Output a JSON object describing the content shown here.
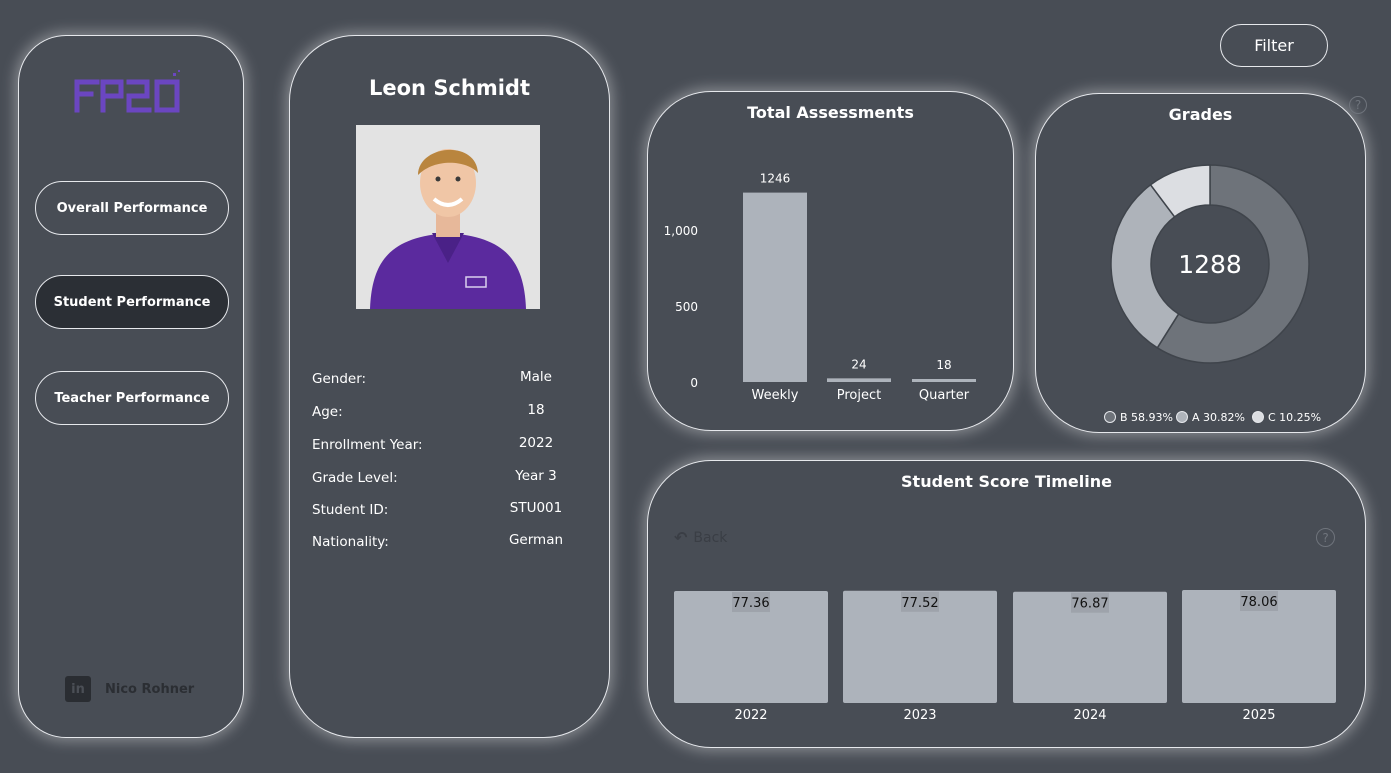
{
  "filter_label": "Filter",
  "sidebar": {
    "nav": [
      {
        "label": "Overall Performance"
      },
      {
        "label": "Student Performance"
      },
      {
        "label": "Teacher Performance"
      }
    ],
    "author": "Nico Rohner",
    "linkedin_glyph": "in"
  },
  "profile": {
    "name": "Leon Schmidt",
    "fields": [
      {
        "label": "Gender:",
        "value": "Male"
      },
      {
        "label": "Age:",
        "value": "18"
      },
      {
        "label": "Enrollment Year:",
        "value": "2022"
      },
      {
        "label": "Grade Level:",
        "value": "Year 3"
      },
      {
        "label": "Student ID:",
        "value": "STU001"
      },
      {
        "label": "Nationality:",
        "value": "German"
      }
    ]
  },
  "chart_data": [
    {
      "type": "bar",
      "title": "Total Assessments",
      "categories": [
        "Weekly",
        "Project",
        "Quarter"
      ],
      "values": [
        1246,
        24,
        18
      ],
      "data_labels": [
        "1246",
        "24",
        "18"
      ],
      "yticks": [
        "0",
        "500",
        "1,000"
      ],
      "ylim": [
        0,
        1250
      ],
      "grid": false,
      "color": "#adb3bb"
    },
    {
      "type": "pie",
      "title": "Grades",
      "center_label": "1288",
      "slices": [
        {
          "name": "B",
          "value": 58.93,
          "label": "B 58.93%",
          "color": "#6e737a"
        },
        {
          "name": "A",
          "value": 30.82,
          "label": "A 30.82%",
          "color": "#aeb3ba"
        },
        {
          "name": "C",
          "value": 10.25,
          "label": "C 10.25%",
          "color": "#dcdee2"
        }
      ],
      "legend": "bottom"
    },
    {
      "type": "bar",
      "title": "Student Score Timeline",
      "categories": [
        "2022",
        "2023",
        "2024",
        "2025"
      ],
      "values": [
        77.36,
        77.52,
        76.87,
        78.06
      ],
      "data_labels": [
        "77.36",
        "77.52",
        "76.87",
        "78.06"
      ],
      "grid": false,
      "color": "#adb3bb"
    }
  ],
  "timeline": {
    "back_label": "Back"
  },
  "help_glyph": "?",
  "colors": {
    "background": "#484d55",
    "border": "#e6e8ec",
    "logo": "#6b46c1",
    "shirt": "#5b2a9e"
  }
}
